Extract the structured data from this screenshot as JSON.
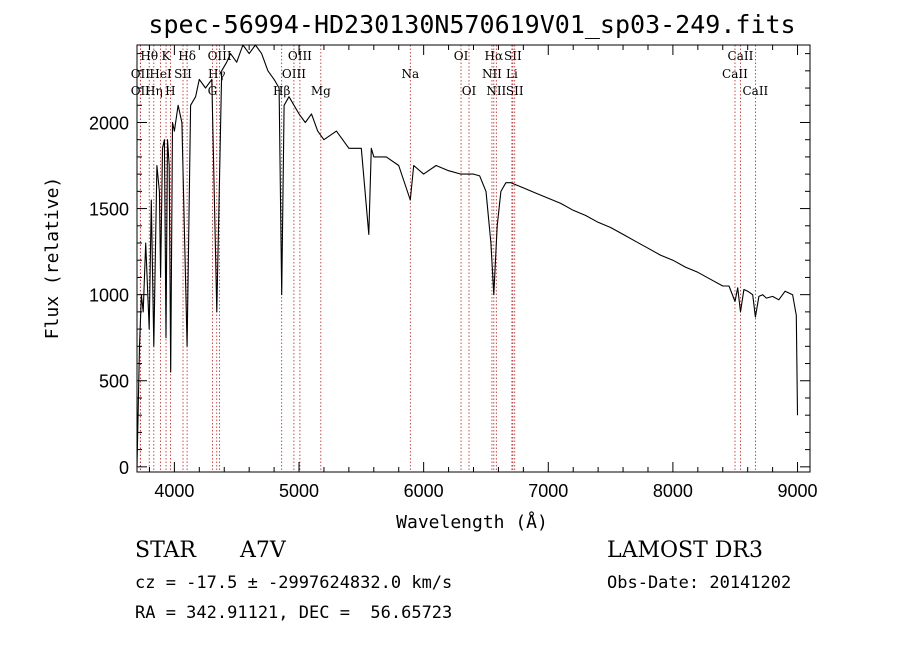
{
  "chart_data": {
    "type": "line",
    "title": "spec-56994-HD230130N570619V01_sp03-249.fits",
    "xlabel": "Wavelength (Å)",
    "ylabel": "Flux (relative)",
    "xlim": [
      3700,
      9100
    ],
    "ylim": [
      -30,
      2450
    ],
    "xticks": [
      4000,
      5000,
      6000,
      7000,
      8000,
      9000
    ],
    "yticks": [
      0,
      500,
      1000,
      1500,
      2000
    ],
    "grid": false,
    "series": [
      {
        "name": "spectrum",
        "x": [
          3700,
          3720,
          3735,
          3750,
          3770,
          3798,
          3815,
          3835,
          3860,
          3880,
          3889,
          3905,
          3920,
          3933,
          3945,
          3958,
          3970,
          3985,
          4000,
          4030,
          4060,
          4102,
          4130,
          4170,
          4200,
          4250,
          4300,
          4340,
          4380,
          4420,
          4450,
          4500,
          4550,
          4600,
          4650,
          4700,
          4750,
          4800,
          4840,
          4861,
          4880,
          4920,
          4960,
          5000,
          5050,
          5100,
          5150,
          5200,
          5300,
          5400,
          5500,
          5560,
          5580,
          5600,
          5700,
          5800,
          5893,
          5920,
          6000,
          6100,
          6200,
          6300,
          6400,
          6450,
          6500,
          6540,
          6563,
          6590,
          6620,
          6660,
          6700,
          6800,
          6900,
          7000,
          7100,
          7200,
          7300,
          7400,
          7500,
          7600,
          7700,
          7800,
          7900,
          8000,
          8100,
          8200,
          8300,
          8400,
          8450,
          8498,
          8520,
          8542,
          8570,
          8600,
          8640,
          8662,
          8690,
          8720,
          8750,
          8800,
          8850,
          8900,
          8960,
          8990,
          9000
        ],
        "values": [
          0,
          700,
          1000,
          900,
          1300,
          800,
          1550,
          700,
          1750,
          1600,
          1100,
          1850,
          1900,
          750,
          1900,
          1750,
          550,
          2000,
          1950,
          2100,
          2000,
          700,
          2100,
          2150,
          2250,
          2200,
          2250,
          900,
          2300,
          2350,
          2400,
          2350,
          2450,
          2400,
          2450,
          2400,
          2300,
          2250,
          2200,
          1000,
          2100,
          2150,
          2100,
          2050,
          2000,
          2050,
          1950,
          1900,
          1950,
          1850,
          1850,
          1350,
          1850,
          1800,
          1800,
          1750,
          1550,
          1750,
          1700,
          1750,
          1720,
          1700,
          1700,
          1690,
          1600,
          1300,
          1000,
          1400,
          1600,
          1650,
          1650,
          1620,
          1590,
          1560,
          1530,
          1490,
          1460,
          1420,
          1390,
          1350,
          1310,
          1270,
          1230,
          1200,
          1160,
          1130,
          1090,
          1050,
          1050,
          960,
          1040,
          900,
          1030,
          1020,
          1000,
          870,
          990,
          1000,
          980,
          990,
          970,
          1020,
          1000,
          880,
          300
        ]
      }
    ],
    "line_markers": [
      {
        "label": "Hθ",
        "wavelength": 3798,
        "row": 0
      },
      {
        "label": "OII",
        "wavelength": 3727,
        "row": 1
      },
      {
        "label": "OII",
        "wavelength": 3727,
        "row": 2
      },
      {
        "label": "Hη",
        "wavelength": 3835,
        "row": 2
      },
      {
        "label": "HeI",
        "wavelength": 3889,
        "row": 1
      },
      {
        "label": "K",
        "wavelength": 3933,
        "row": 0
      },
      {
        "label": "H",
        "wavelength": 3968,
        "row": 2
      },
      {
        "label": "SII",
        "wavelength": 4069,
        "row": 1
      },
      {
        "label": "Hδ",
        "wavelength": 4102,
        "row": 0
      },
      {
        "label": "OIII",
        "wavelength": 4363,
        "row": 0
      },
      {
        "label": "Hγ",
        "wavelength": 4340,
        "row": 1
      },
      {
        "label": "G",
        "wavelength": 4305,
        "row": 2
      },
      {
        "label": "OIII",
        "wavelength": 5007,
        "row": 0
      },
      {
        "label": "OIII",
        "wavelength": 4959,
        "row": 1
      },
      {
        "label": "Hβ",
        "wavelength": 4861,
        "row": 2
      },
      {
        "label": "Mg",
        "wavelength": 5175,
        "row": 2
      },
      {
        "label": "Na",
        "wavelength": 5893,
        "row": 1
      },
      {
        "label": "OI",
        "wavelength": 6300,
        "row": 0
      },
      {
        "label": "OI",
        "wavelength": 6364,
        "row": 2
      },
      {
        "label": "Hα",
        "wavelength": 6563,
        "row": 0
      },
      {
        "label": "NII",
        "wavelength": 6548,
        "row": 1
      },
      {
        "label": "NII",
        "wavelength": 6583,
        "row": 2
      },
      {
        "label": "SII",
        "wavelength": 6716,
        "row": 0
      },
      {
        "label": "Li",
        "wavelength": 6708,
        "row": 1
      },
      {
        "label": "SII",
        "wavelength": 6731,
        "row": 2
      },
      {
        "label": "CaII",
        "wavelength": 8542,
        "row": 0
      },
      {
        "label": "CaII",
        "wavelength": 8498,
        "row": 1
      },
      {
        "label": "CaII",
        "wavelength": 8662,
        "row": 2
      }
    ]
  },
  "info": {
    "class": "STAR",
    "subclass": "A7V",
    "survey": "LAMOST DR3",
    "cz": "cz = -17.5 ± -2997624832.0 km/s",
    "obs_date": "Obs-Date: 20141202",
    "coords": "RA = 342.91121, DEC =  56.65723"
  }
}
